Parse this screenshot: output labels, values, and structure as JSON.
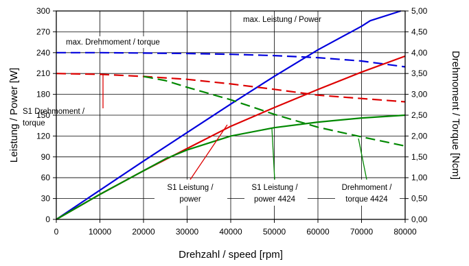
{
  "chart_data": {
    "type": "line",
    "xlabel": "Drehzahl / speed [rpm]",
    "ylabel": "Leistung / Power [W]",
    "y2label": "Drehmoment / Torque  [Ncm]",
    "xlim": [
      0,
      80000
    ],
    "ylim": [
      0,
      300
    ],
    "y2lim": [
      0,
      5
    ],
    "xticks": [
      0,
      10000,
      20000,
      30000,
      40000,
      50000,
      60000,
      70000,
      80000
    ],
    "xtick_labels": [
      "0",
      "10000",
      "20000",
      "30000",
      "40000",
      "50000",
      "60000",
      "70000",
      "80000"
    ],
    "yticks": [
      0,
      30,
      60,
      90,
      120,
      150,
      180,
      210,
      240,
      270,
      300
    ],
    "ytick_labels": [
      "0",
      "30",
      "60",
      "90",
      "120",
      "150",
      "180",
      "210",
      "240",
      "270",
      "300"
    ],
    "y2ticks": [
      0,
      0.5,
      1,
      1.5,
      2,
      2.5,
      3,
      3.5,
      4,
      4.5,
      5
    ],
    "y2tick_labels": [
      "0,00",
      "0,50",
      "1,00",
      "1,50",
      "2,00",
      "2,50",
      "3,00",
      "3,50",
      "4,00",
      "4,50",
      "5,00"
    ],
    "grid": true,
    "series": [
      {
        "key": "max_power",
        "color": "#0000dd",
        "style": "solid",
        "axis": "left",
        "x": [
          0,
          10000,
          20000,
          30000,
          40000,
          50000,
          60000,
          70000,
          72000,
          79000
        ],
        "y": [
          0,
          42,
          84,
          125,
          166,
          206,
          244,
          278,
          286,
          300
        ]
      },
      {
        "key": "max_torque",
        "color": "#0000dd",
        "style": "dashed",
        "axis": "right",
        "x": [
          0,
          10000,
          20000,
          30000,
          40000,
          50000,
          60000,
          70000,
          80000
        ],
        "y": [
          4.0,
          4.0,
          3.99,
          3.98,
          3.96,
          3.93,
          3.88,
          3.8,
          3.66
        ]
      },
      {
        "key": "s1_power",
        "color": "#dd0000",
        "style": "solid",
        "axis": "left",
        "x": [
          0,
          10000,
          20000,
          30000,
          40000,
          50000,
          60000,
          70000,
          80000
        ],
        "y": [
          0,
          36,
          70,
          102,
          134,
          161,
          187,
          212,
          235
        ]
      },
      {
        "key": "s1_torque",
        "color": "#dd0000",
        "style": "dashed",
        "axis": "right",
        "x": [
          0,
          10000,
          20000,
          30000,
          40000,
          50000,
          60000,
          70000,
          80000
        ],
        "y": [
          3.5,
          3.48,
          3.43,
          3.36,
          3.25,
          3.12,
          2.98,
          2.9,
          2.82
        ]
      },
      {
        "key": "s1_power_4424",
        "color": "#008800",
        "style": "solid",
        "axis": "left",
        "x": [
          0,
          10000,
          20000,
          25000,
          30000,
          40000,
          50000,
          60000,
          70000,
          80000
        ],
        "y": [
          0,
          36,
          70,
          87,
          100,
          120,
          132,
          140,
          146,
          150
        ]
      },
      {
        "key": "s1_torque_4424",
        "color": "#008800",
        "style": "dashed",
        "axis": "right",
        "x": [
          20000,
          25000,
          30000,
          40000,
          50000,
          60000,
          70000,
          80000
        ],
        "y": [
          3.43,
          3.33,
          3.17,
          2.87,
          2.52,
          2.21,
          1.98,
          1.76
        ]
      }
    ],
    "annotations": [
      {
        "key": "max_power",
        "lines": [
          "max.  Leistung /  Power"
        ],
        "color": "#0000dd"
      },
      {
        "key": "max_torque",
        "lines": [
          "max.  Drehmoment  /  torque"
        ],
        "color": "#0000dd"
      },
      {
        "key": "s1_torque",
        "lines": [
          "S1  Drehmoment /",
          "torque"
        ],
        "color": "#dd0000"
      },
      {
        "key": "s1_power",
        "lines": [
          "S1 Leistung /",
          "power"
        ],
        "color": "#dd0000"
      },
      {
        "key": "s1_power_4424",
        "lines": [
          "S1 Leistung /",
          "power 4424"
        ],
        "color": "#008800"
      },
      {
        "key": "s1_torque_4424",
        "lines": [
          "Drehmoment /",
          "torque 4424"
        ],
        "color": "#008800"
      }
    ]
  }
}
